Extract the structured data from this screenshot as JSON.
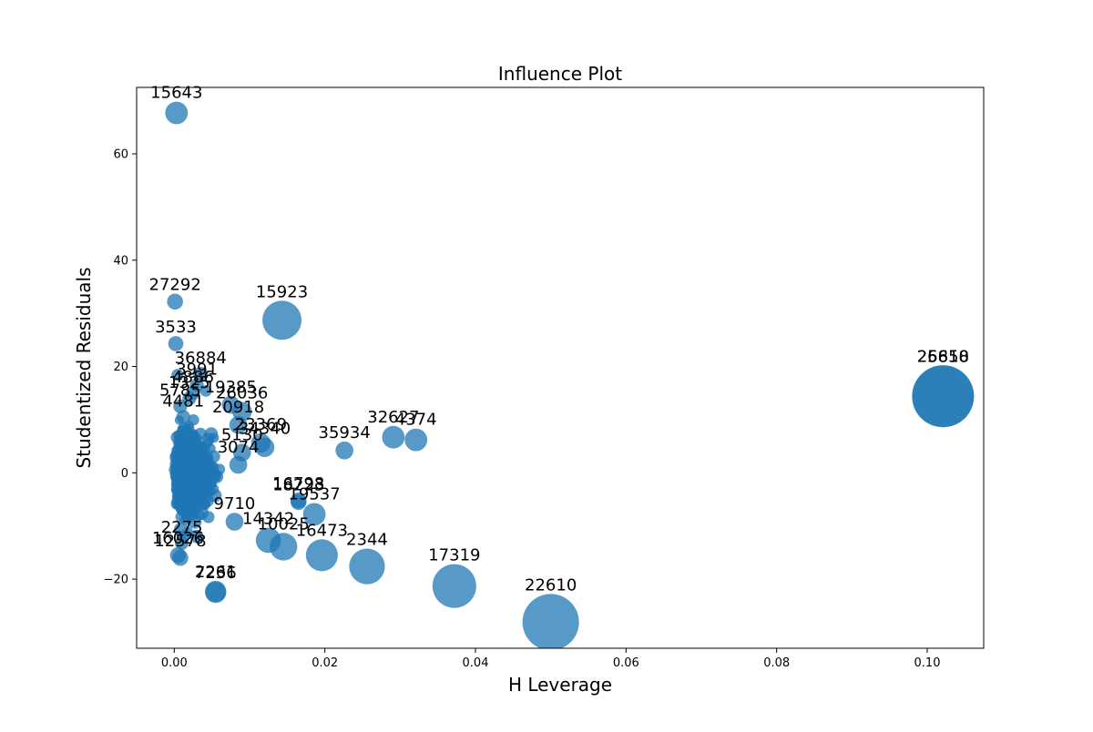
{
  "chart_data": {
    "type": "scatter",
    "title": "Influence Plot",
    "xlabel": "H Leverage",
    "ylabel": "Studentized Residuals",
    "xlim": [
      -0.005,
      0.1075
    ],
    "ylim": [
      -33,
      72.5
    ],
    "xticks": [
      0.0,
      0.02,
      0.04,
      0.06,
      0.08,
      0.1
    ],
    "xtick_labels": [
      "0.00",
      "0.02",
      "0.04",
      "0.06",
      "0.08",
      "0.10"
    ],
    "yticks": [
      -20,
      0,
      20,
      40,
      60
    ],
    "ytick_labels": [
      "−20",
      "0",
      "20",
      "40",
      "60"
    ],
    "grid": false,
    "marker_color": "#1f77b4",
    "marker_size_encodes": "influence (Cook's distance)",
    "points": [
      {
        "id": "15643",
        "x": 0.0003,
        "y": 67.7,
        "size": 4.0
      },
      {
        "id": "27292",
        "x": 0.0001,
        "y": 32.2,
        "size": 2.0
      },
      {
        "id": "15923",
        "x": 0.0143,
        "y": 28.7,
        "size": 12.0
      },
      {
        "id": "3533",
        "x": 0.0002,
        "y": 24.3,
        "size": 1.8
      },
      {
        "id": "25658",
        "x": 0.1021,
        "y": 14.4,
        "size": 30.0
      },
      {
        "id": "26810",
        "x": 0.1021,
        "y": 14.4,
        "size": 30.0
      },
      {
        "id": "36884",
        "x": 0.0035,
        "y": 18.5,
        "size": 1.8
      },
      {
        "id": "19385",
        "x": 0.0075,
        "y": 12.8,
        "size": 2.5
      },
      {
        "id": "26036",
        "x": 0.009,
        "y": 11.5,
        "size": 3.0
      },
      {
        "id": "20918",
        "x": 0.0085,
        "y": 9.0,
        "size": 2.5
      },
      {
        "id": "23369",
        "x": 0.0115,
        "y": 5.6,
        "size": 3.0
      },
      {
        "id": "34340",
        "x": 0.012,
        "y": 4.8,
        "size": 3.0
      },
      {
        "id": "35934",
        "x": 0.0226,
        "y": 4.2,
        "size": 2.5
      },
      {
        "id": "32627",
        "x": 0.0291,
        "y": 6.7,
        "size": 4.0
      },
      {
        "id": "4374",
        "x": 0.0321,
        "y": 6.2,
        "size": 4.0
      },
      {
        "id": "16798",
        "x": 0.0165,
        "y": -5.2,
        "size": 2.0
      },
      {
        "id": "18223",
        "x": 0.0165,
        "y": -5.5,
        "size": 2.0
      },
      {
        "id": "19537",
        "x": 0.0186,
        "y": -7.8,
        "size": 4.0
      },
      {
        "id": "14342",
        "x": 0.0125,
        "y": -12.7,
        "size": 5.0
      },
      {
        "id": "10025",
        "x": 0.0145,
        "y": -13.9,
        "size": 6.0
      },
      {
        "id": "16473",
        "x": 0.0196,
        "y": -15.5,
        "size": 8.0
      },
      {
        "id": "2344",
        "x": 0.0256,
        "y": -17.6,
        "size": 10.0
      },
      {
        "id": "17319",
        "x": 0.0372,
        "y": -21.3,
        "size": 15.0
      },
      {
        "id": "22610",
        "x": 0.05,
        "y": -28.1,
        "size": 25.0
      },
      {
        "id": "7236",
        "x": 0.0055,
        "y": -22.5,
        "size": 3.5
      },
      {
        "id": "2261",
        "x": 0.0055,
        "y": -22.3,
        "size": 3.5
      },
      {
        "id": "12578",
        "x": 0.0008,
        "y": -16.0,
        "size": 2.0
      },
      {
        "id": "16026",
        "x": 0.0005,
        "y": -15.5,
        "size": 2.0
      },
      {
        "id": "9710",
        "x": 0.008,
        "y": -9.2,
        "size": 2.5
      },
      {
        "id": "3074",
        "x": 0.0085,
        "y": 1.5,
        "size": 2.5
      },
      {
        "id": "5130",
        "x": 0.009,
        "y": 3.8,
        "size": 2.5
      },
      {
        "id": "3991",
        "x": 0.003,
        "y": 16.5,
        "size": 1.5
      },
      {
        "id": "4886",
        "x": 0.0025,
        "y": 15.0,
        "size": 1.5
      },
      {
        "id": "1325",
        "x": 0.002,
        "y": 14.0,
        "size": 1.5
      },
      {
        "id": "5785",
        "x": 0.0008,
        "y": 12.5,
        "size": 1.5
      },
      {
        "id": "4481",
        "x": 0.0012,
        "y": 10.5,
        "size": 1.5
      },
      {
        "id": "2275",
        "x": 0.001,
        "y": -13.2,
        "size": 1.5
      }
    ],
    "cluster_note_hidden": true
  }
}
